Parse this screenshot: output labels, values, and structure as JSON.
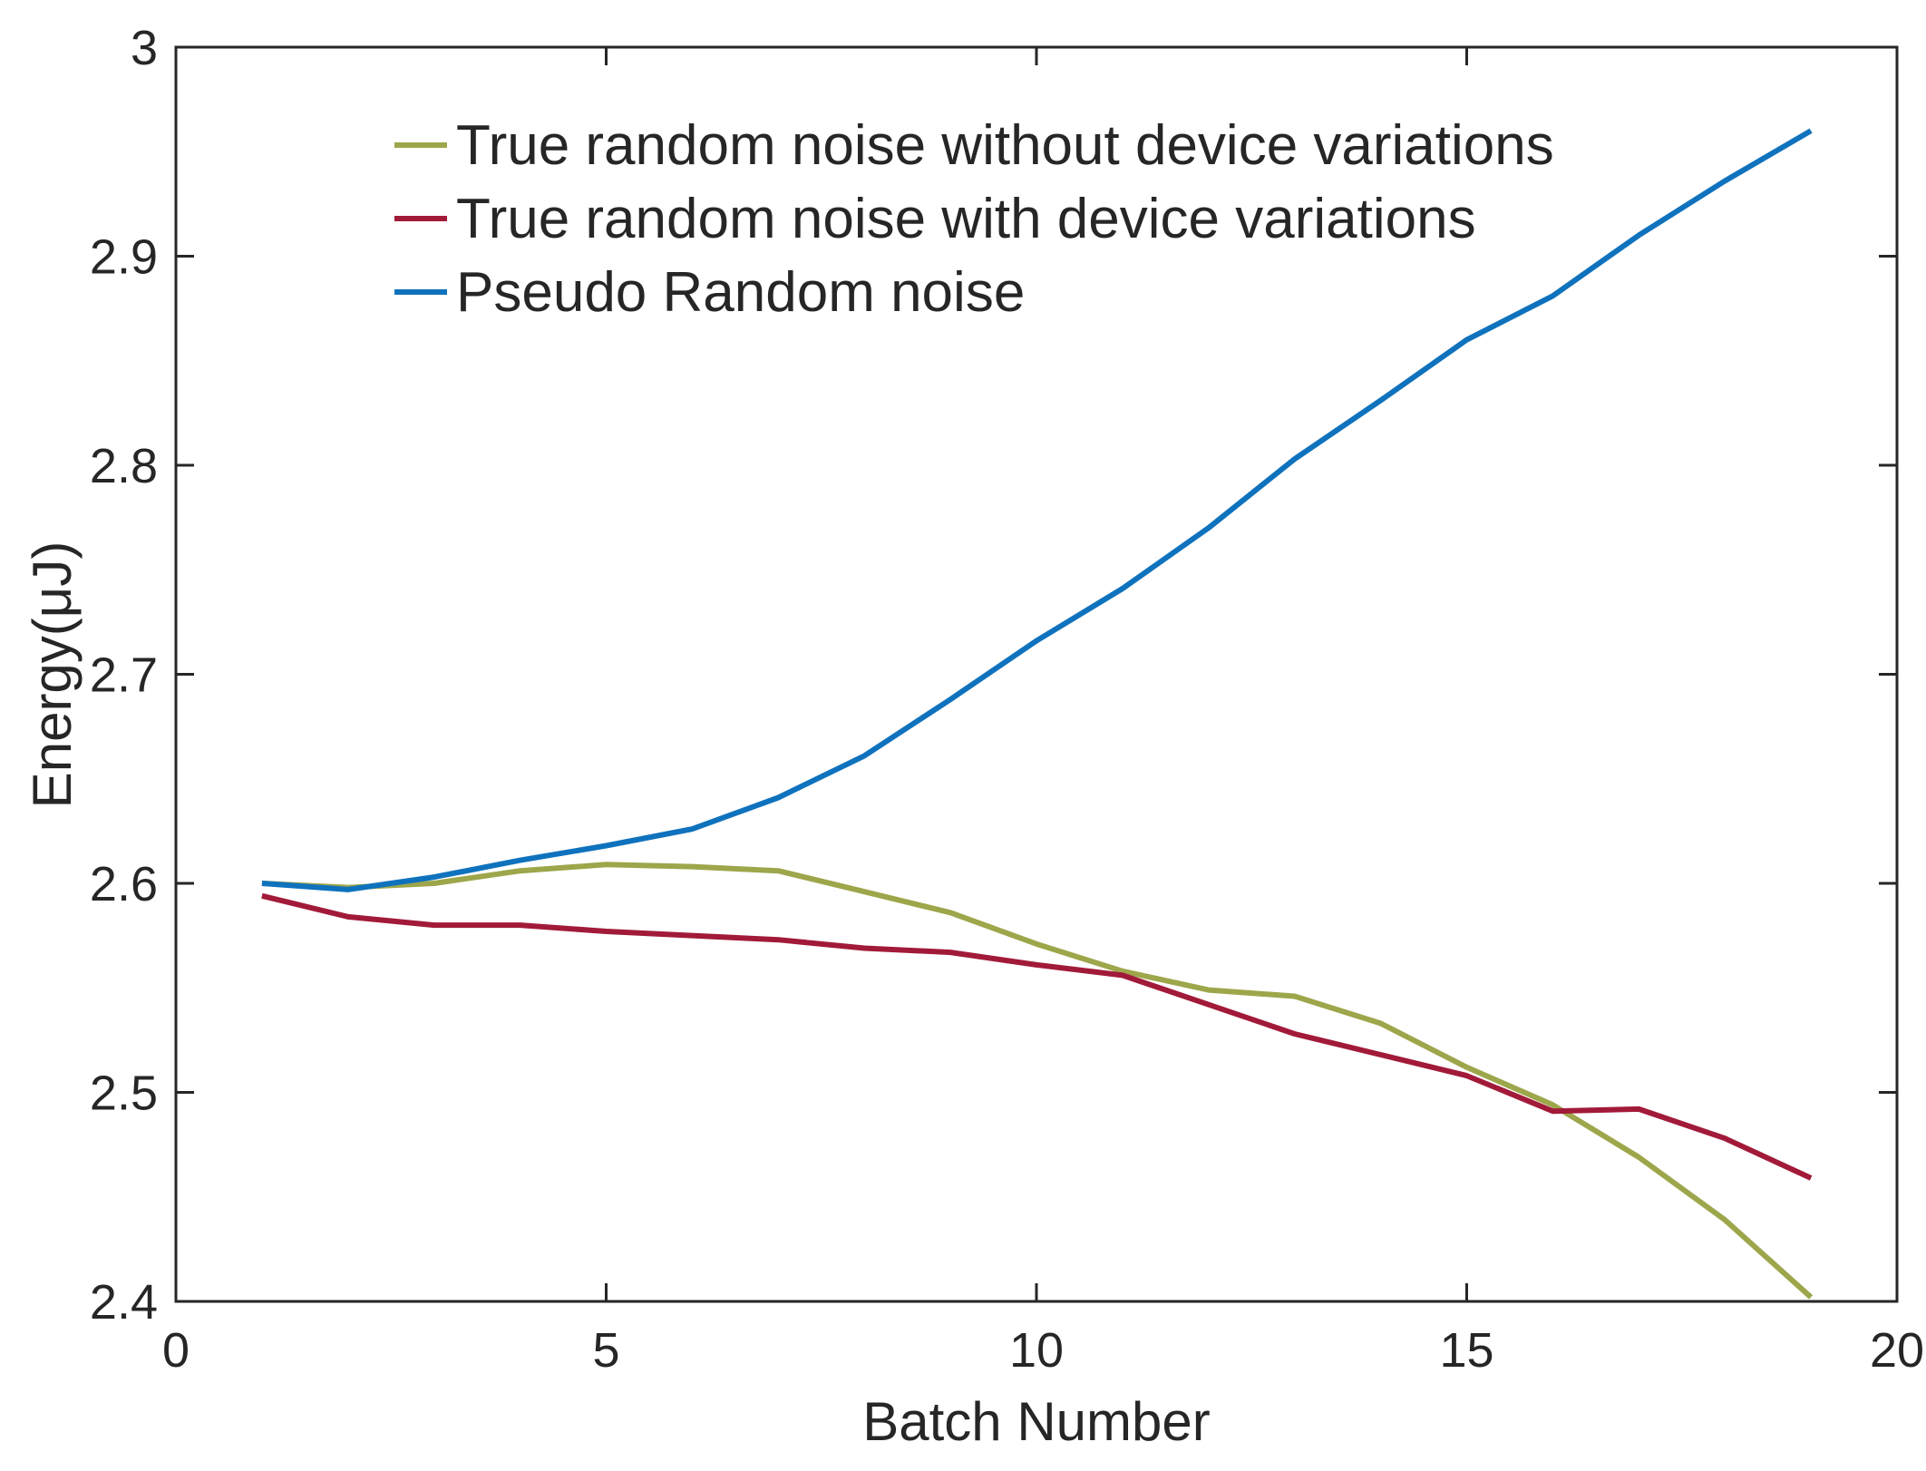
{
  "chart_data": {
    "type": "line",
    "title": "",
    "xlabel": "Batch Number",
    "ylabel": "Energy(μJ)",
    "xlim": [
      0,
      20
    ],
    "ylim": [
      2.4,
      3.0
    ],
    "xticks": [
      0,
      5,
      10,
      15,
      20
    ],
    "yticks": [
      2.4,
      2.5,
      2.6,
      2.7,
      2.8,
      2.9,
      3.0
    ],
    "xtick_labels": [
      "0",
      "5",
      "10",
      "15",
      "20"
    ],
    "ytick_labels": [
      "2.4",
      "2.5",
      "2.6",
      "2.7",
      "2.8",
      "2.9",
      "3"
    ],
    "grid": false,
    "legend_position": "top",
    "x": [
      1,
      2,
      3,
      4,
      5,
      6,
      7,
      8,
      9,
      10,
      11,
      12,
      13,
      14,
      15,
      16,
      17,
      18,
      19
    ],
    "series": [
      {
        "name": "True random noise without device variations",
        "color": "#9da64a",
        "values": [
          2.6,
          2.598,
          2.6,
          2.606,
          2.609,
          2.608,
          2.606,
          2.596,
          2.586,
          2.571,
          2.558,
          2.549,
          2.546,
          2.533,
          2.512,
          2.494,
          2.469,
          2.439,
          2.402
        ]
      },
      {
        "name": "True random noise with device variations",
        "color": "#a21a39",
        "values": [
          2.594,
          2.584,
          2.58,
          2.58,
          2.577,
          2.575,
          2.573,
          2.569,
          2.567,
          2.561,
          2.556,
          2.542,
          2.528,
          2.518,
          2.508,
          2.491,
          2.492,
          2.478,
          2.459
        ]
      },
      {
        "name": "Pseudo Random noise",
        "color": "#0f72bd",
        "values": [
          2.6,
          2.597,
          2.603,
          2.611,
          2.618,
          2.626,
          2.641,
          2.661,
          2.688,
          2.716,
          2.741,
          2.77,
          2.803,
          2.831,
          2.86,
          2.881,
          2.91,
          2.936,
          2.96
        ]
      }
    ]
  }
}
